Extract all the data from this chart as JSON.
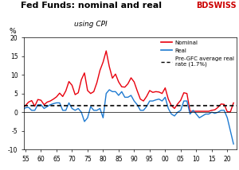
{
  "title": "Fed Funds: nominal and real",
  "subtitle": "using CPI",
  "ylabel": "%",
  "ylim": [
    -10,
    20
  ],
  "yticks": [
    -10,
    -5,
    0,
    5,
    10,
    15,
    20
  ],
  "xlim": [
    1954.5,
    2023.0
  ],
  "xtick_positions": [
    1955,
    1960,
    1965,
    1970,
    1975,
    1980,
    1985,
    1990,
    1995,
    2000,
    2005,
    2010,
    2015,
    2020
  ],
  "xtick_labels": [
    "55",
    "60",
    "65",
    "70",
    "75",
    "80",
    "85",
    "90",
    "95",
    "00",
    "05",
    "10",
    "15",
    "20"
  ],
  "pre_gfc_avg": 1.7,
  "nominal_color": "#e8000d",
  "real_color": "#1e7ad1",
  "dashed_color": "#000000",
  "background_color": "#ffffff",
  "legend_nominal": "Nominal",
  "legend_real": "Real",
  "legend_dashed": "Pre-GFC average real\nrate (1.7%)",
  "bdswiss_color": "#cc0000",
  "nominal": [
    [
      1954,
      1.0
    ],
    [
      1955,
      1.8
    ],
    [
      1956,
      2.7
    ],
    [
      1957,
      3.1
    ],
    [
      1958,
      1.6
    ],
    [
      1959,
      3.4
    ],
    [
      1960,
      3.2
    ],
    [
      1961,
      2.0
    ],
    [
      1962,
      2.7
    ],
    [
      1963,
      3.0
    ],
    [
      1964,
      3.5
    ],
    [
      1965,
      4.1
    ],
    [
      1966,
      5.1
    ],
    [
      1967,
      4.2
    ],
    [
      1968,
      5.7
    ],
    [
      1969,
      8.2
    ],
    [
      1970,
      7.2
    ],
    [
      1971,
      4.7
    ],
    [
      1972,
      5.2
    ],
    [
      1973,
      8.7
    ],
    [
      1974,
      10.5
    ],
    [
      1975,
      5.8
    ],
    [
      1976,
      5.0
    ],
    [
      1977,
      5.5
    ],
    [
      1978,
      7.9
    ],
    [
      1979,
      11.2
    ],
    [
      1980,
      13.4
    ],
    [
      1981,
      16.4
    ],
    [
      1982,
      12.2
    ],
    [
      1983,
      9.1
    ],
    [
      1984,
      10.2
    ],
    [
      1985,
      8.1
    ],
    [
      1986,
      6.8
    ],
    [
      1987,
      6.7
    ],
    [
      1988,
      7.6
    ],
    [
      1989,
      9.2
    ],
    [
      1990,
      8.1
    ],
    [
      1991,
      5.7
    ],
    [
      1992,
      3.5
    ],
    [
      1993,
      3.0
    ],
    [
      1994,
      4.2
    ],
    [
      1995,
      5.8
    ],
    [
      1996,
      5.3
    ],
    [
      1997,
      5.5
    ],
    [
      1998,
      5.4
    ],
    [
      1999,
      5.0
    ],
    [
      2000,
      6.5
    ],
    [
      2001,
      3.5
    ],
    [
      2002,
      1.75
    ],
    [
      2003,
      1.0
    ],
    [
      2004,
      2.2
    ],
    [
      2005,
      3.2
    ],
    [
      2006,
      5.2
    ],
    [
      2007,
      5.0
    ],
    [
      2008,
      0.25
    ],
    [
      2009,
      0.25
    ],
    [
      2010,
      0.25
    ],
    [
      2011,
      0.25
    ],
    [
      2012,
      0.25
    ],
    [
      2013,
      0.25
    ],
    [
      2014,
      0.25
    ],
    [
      2015,
      0.5
    ],
    [
      2016,
      0.65
    ],
    [
      2017,
      1.3
    ],
    [
      2018,
      2.2
    ],
    [
      2019,
      2.1
    ],
    [
      2020,
      0.1
    ],
    [
      2021,
      0.1
    ],
    [
      2022,
      2.5
    ]
  ],
  "real": [
    [
      1954,
      0.5
    ],
    [
      1955,
      1.2
    ],
    [
      1956,
      1.3
    ],
    [
      1957,
      0.5
    ],
    [
      1958,
      0.5
    ],
    [
      1959,
      2.0
    ],
    [
      1960,
      2.0
    ],
    [
      1961,
      1.0
    ],
    [
      1962,
      1.5
    ],
    [
      1963,
      2.0
    ],
    [
      1964,
      2.3
    ],
    [
      1965,
      2.5
    ],
    [
      1966,
      2.5
    ],
    [
      1967,
      0.5
    ],
    [
      1968,
      0.5
    ],
    [
      1969,
      2.5
    ],
    [
      1970,
      1.0
    ],
    [
      1971,
      0.5
    ],
    [
      1972,
      1.0
    ],
    [
      1973,
      0.0
    ],
    [
      1974,
      -2.5
    ],
    [
      1975,
      -1.5
    ],
    [
      1976,
      1.5
    ],
    [
      1977,
      0.5
    ],
    [
      1978,
      0.5
    ],
    [
      1979,
      1.0
    ],
    [
      1980,
      -1.5
    ],
    [
      1981,
      5.0
    ],
    [
      1982,
      6.0
    ],
    [
      1983,
      5.5
    ],
    [
      1984,
      5.5
    ],
    [
      1985,
      4.5
    ],
    [
      1986,
      5.5
    ],
    [
      1987,
      4.0
    ],
    [
      1988,
      4.0
    ],
    [
      1989,
      4.5
    ],
    [
      1990,
      3.0
    ],
    [
      1991,
      2.0
    ],
    [
      1992,
      0.5
    ],
    [
      1993,
      0.5
    ],
    [
      1994,
      1.5
    ],
    [
      1995,
      3.0
    ],
    [
      1996,
      3.0
    ],
    [
      1997,
      3.3
    ],
    [
      1998,
      3.5
    ],
    [
      1999,
      3.0
    ],
    [
      2000,
      4.0
    ],
    [
      2001,
      1.0
    ],
    [
      2002,
      -0.5
    ],
    [
      2003,
      -1.0
    ],
    [
      2004,
      0.0
    ],
    [
      2005,
      0.5
    ],
    [
      2006,
      3.0
    ],
    [
      2007,
      3.0
    ],
    [
      2008,
      -0.5
    ],
    [
      2009,
      0.5
    ],
    [
      2010,
      -0.5
    ],
    [
      2011,
      -1.5
    ],
    [
      2012,
      -1.0
    ],
    [
      2013,
      -0.5
    ],
    [
      2014,
      -0.5
    ],
    [
      2015,
      0.0
    ],
    [
      2016,
      -0.3
    ],
    [
      2017,
      0.0
    ],
    [
      2018,
      0.5
    ],
    [
      2019,
      0.5
    ],
    [
      2020,
      -1.5
    ],
    [
      2021,
      -5.0
    ],
    [
      2022,
      -8.5
    ]
  ]
}
